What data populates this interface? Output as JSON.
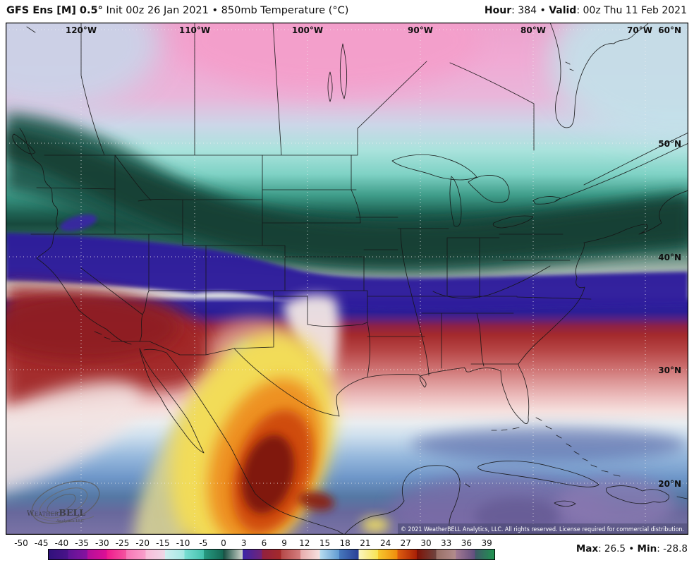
{
  "header": {
    "title_bold": "GFS Ens [M] 0.5°",
    "title_rest": "Init 00z 26 Jan 2021 • 850mb Temperature (°C)",
    "hour_label": "Hour",
    "colon": ": ",
    "hour_value": "384",
    "bullet": " • ",
    "valid_label": "Valid",
    "valid_value": "00z Thu 11 Feb 2021"
  },
  "map": {
    "lon_labels": [
      "120°W",
      "110°W",
      "100°W",
      "90°W",
      "80°W",
      "70°W"
    ],
    "lat_labels": [
      "60°N",
      "50°N",
      "40°N",
      "30°N",
      "20°N"
    ],
    "watermark": {
      "brand_serif": "Weather",
      "brand_bold": "BELL",
      "subtitle": "Analytics LLC"
    },
    "copyright": "© 2021 WeatherBELL Analytics, LLC. All rights reserved. License required for commercial distribution."
  },
  "colorbar": {
    "unit": "°C",
    "ticks": [
      "-50",
      "-45",
      "-40",
      "-35",
      "-30",
      "-25",
      "-20",
      "-15",
      "-10",
      "-5",
      "0",
      "3",
      "6",
      "9",
      "12",
      "15",
      "18",
      "21",
      "24",
      "27",
      "30",
      "33",
      "36",
      "39"
    ],
    "bins": [
      {
        "from": -50,
        "to": -45,
        "c1": "#30117c",
        "c2": "#4a1389"
      },
      {
        "from": -45,
        "to": -40,
        "c1": "#5e1596",
        "c2": "#8812a0"
      },
      {
        "from": -40,
        "to": -35,
        "c1": "#b30f9b",
        "c2": "#de0f95"
      },
      {
        "from": -35,
        "to": -30,
        "c1": "#ef1a8e",
        "c2": "#f4549f"
      },
      {
        "from": -30,
        "to": -25,
        "c1": "#f676b6",
        "c2": "#f9a0cb"
      },
      {
        "from": -25,
        "to": -20,
        "c1": "#f9bcd9",
        "c2": "#eed7e6"
      },
      {
        "from": -20,
        "to": -15,
        "c1": "#cfeef0",
        "c2": "#a5e8e3"
      },
      {
        "from": -15,
        "to": -10,
        "c1": "#7adfd4",
        "c2": "#45c2ae"
      },
      {
        "from": -10,
        "to": -5,
        "c1": "#279b82",
        "c2": "#156854"
      },
      {
        "from": -5,
        "to": 0,
        "c1": "#124b3e",
        "c2": "#cdd3cb"
      },
      {
        "from": 0,
        "to": 3,
        "c1": "#3a26a8",
        "c2": "#722377"
      },
      {
        "from": 3,
        "to": 6,
        "c1": "#91203f",
        "c2": "#a52a2a"
      },
      {
        "from": 6,
        "to": 9,
        "c1": "#b54848",
        "c2": "#d47f7f"
      },
      {
        "from": 9,
        "to": 12,
        "c1": "#e8abab",
        "c2": "#f7e3e1"
      },
      {
        "from": 12,
        "to": 15,
        "c1": "#b7dcf0",
        "c2": "#5f9ad2"
      },
      {
        "from": 15,
        "to": 18,
        "c1": "#4678bc",
        "c2": "#2a3f96"
      },
      {
        "from": 18,
        "to": 21,
        "c1": "#faf6c0",
        "c2": "#f8e352"
      },
      {
        "from": 21,
        "to": 24,
        "c1": "#f6c82e",
        "c2": "#ef8c0c"
      },
      {
        "from": 24,
        "to": 27,
        "c1": "#df5f10",
        "c2": "#a81f06"
      },
      {
        "from": 27,
        "to": 30,
        "c1": "#7e1206",
        "c2": "#6f4540"
      },
      {
        "from": 30,
        "to": 33,
        "c1": "#997066",
        "c2": "#b28c8c"
      },
      {
        "from": 33,
        "to": 36,
        "c1": "#a37a92",
        "c2": "#614e7e"
      },
      {
        "from": 36,
        "to": 39,
        "c1": "#3f5a68",
        "c2": "#1f9350"
      }
    ]
  },
  "stats": {
    "max_label": "Max",
    "colon": ": ",
    "max_value": "26.5",
    "bullet": " • ",
    "min_label": "Min",
    "min_value": "-28.8"
  }
}
